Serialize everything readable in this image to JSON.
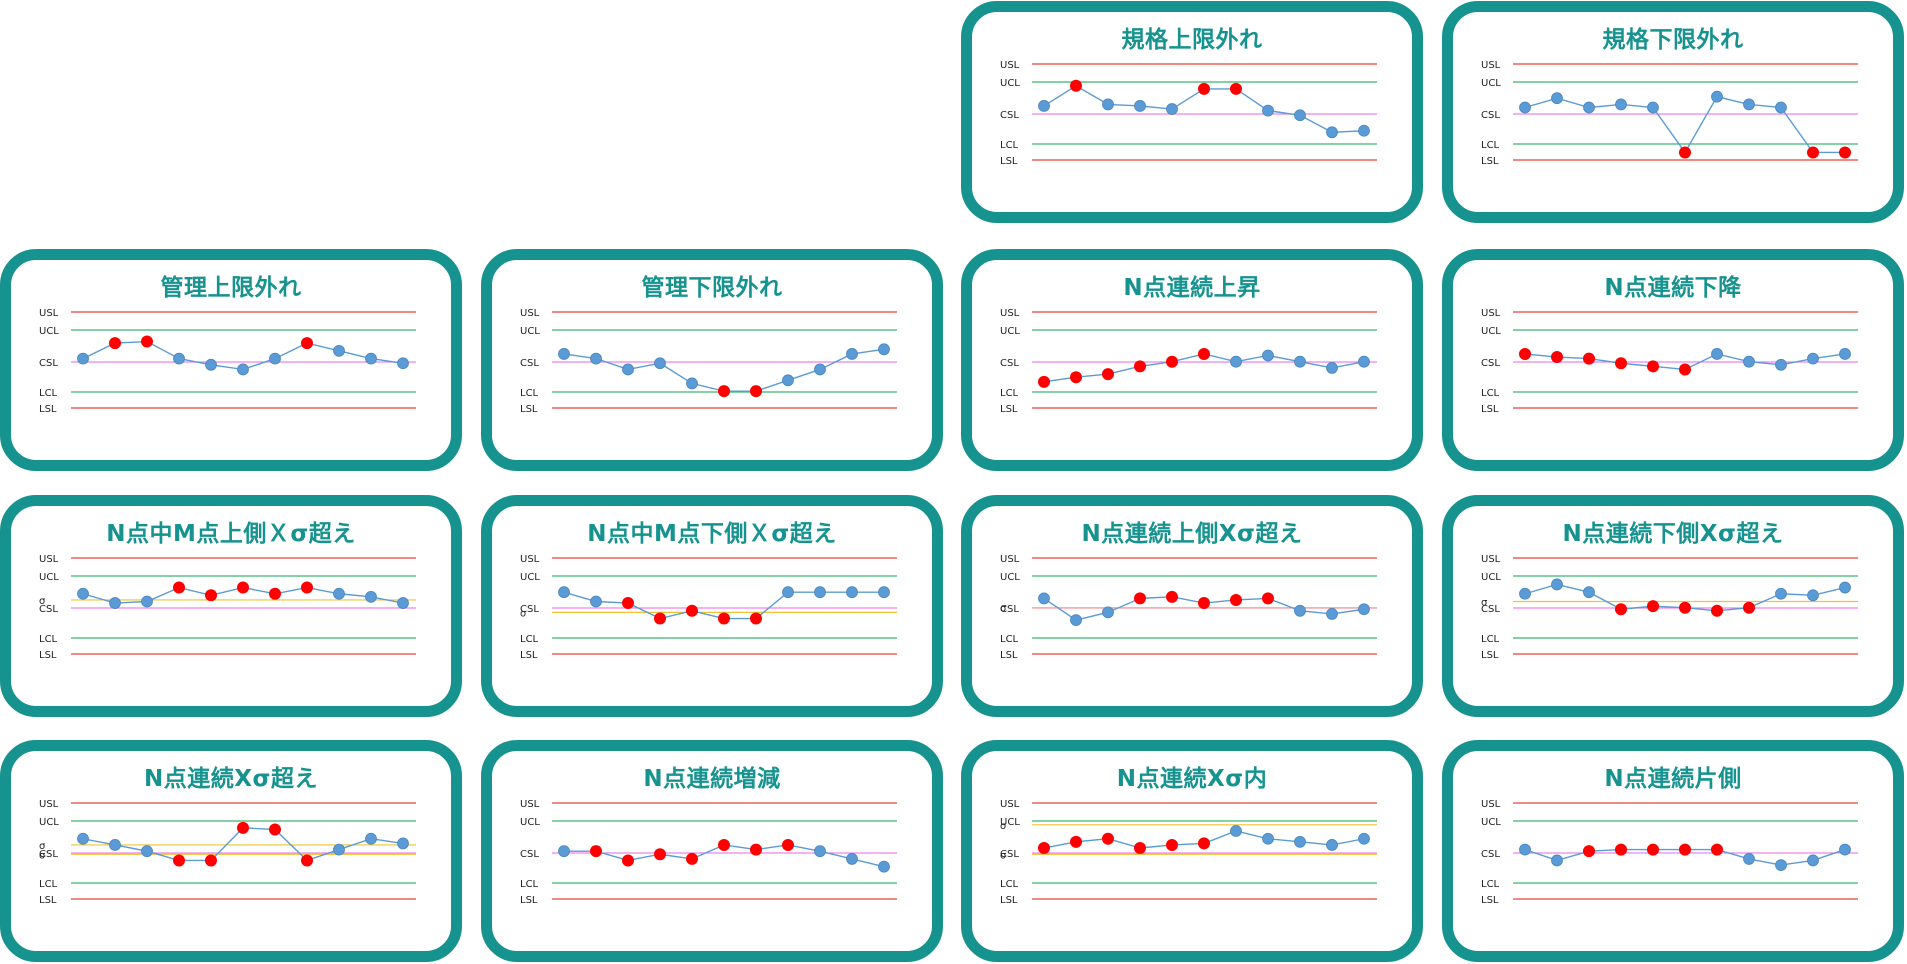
{
  "colors": {
    "accent": "#17938f",
    "usl_lsl": "#e8403a",
    "ucl_lcl": "#3cb371",
    "csl": "#ee82ee",
    "sigma": "#f2c230",
    "line": "#5b9bd5",
    "normal_point": "#5b9bd5",
    "alarm_point": "#ff0000"
  },
  "labels": {
    "USL": "USL",
    "UCL": "UCL",
    "CSL": "CSL",
    "LCL": "LCL",
    "LSL": "LSL",
    "sigma": "σ"
  },
  "cards": [
    {
      "title": "規格上限外れ",
      "chart_data": {
        "type": "line",
        "y": [
          0.45,
          -0.2,
          0.4,
          0.45,
          0.55,
          -0.1,
          -0.1,
          0.6,
          0.75,
          1.3,
          1.25
        ],
        "alarm": [
          1,
          5,
          6
        ],
        "sigma": []
      }
    },
    {
      "title": "規格下限外れ",
      "chart_data": {
        "type": "line",
        "y": [
          0.5,
          0.2,
          0.5,
          0.4,
          0.5,
          1.95,
          0.15,
          0.4,
          0.5,
          1.95,
          1.95
        ],
        "alarm": [
          5,
          9,
          10
        ],
        "sigma": []
      }
    },
    {
      "title": "管理上限外れ",
      "chart_data": {
        "type": "line",
        "y": [
          0.6,
          0.1,
          0.05,
          0.6,
          0.8,
          0.95,
          0.6,
          0.1,
          0.35,
          0.6,
          0.75
        ],
        "alarm": [
          1,
          2,
          7
        ],
        "sigma": []
      }
    },
    {
      "title": "管理下限外れ",
      "chart_data": {
        "type": "line",
        "y": [
          0.45,
          0.6,
          0.95,
          0.75,
          1.4,
          1.65,
          1.65,
          1.3,
          0.95,
          0.45,
          0.3
        ],
        "alarm": [
          5,
          6
        ],
        "sigma": []
      }
    },
    {
      "title": "N点連続上昇",
      "chart_data": {
        "type": "line",
        "y": [
          1.35,
          1.2,
          1.1,
          0.85,
          0.7,
          0.45,
          0.7,
          0.5,
          0.7,
          0.9,
          0.7
        ],
        "alarm": [
          0,
          1,
          2,
          3,
          4,
          5
        ],
        "sigma": []
      }
    },
    {
      "title": "N点連続下降",
      "chart_data": {
        "type": "line",
        "y": [
          0.45,
          0.55,
          0.6,
          0.75,
          0.85,
          0.95,
          0.45,
          0.7,
          0.8,
          0.6,
          0.45
        ],
        "alarm": [
          0,
          1,
          2,
          3,
          4,
          5
        ],
        "sigma": []
      }
    },
    {
      "title": "N点中M点上側Ｘσ超え",
      "chart_data": {
        "type": "line",
        "y": [
          0.25,
          0.55,
          0.5,
          0.05,
          0.3,
          0.05,
          0.25,
          0.05,
          0.25,
          0.35,
          0.55
        ],
        "alarm": [
          3,
          4,
          5,
          6,
          7
        ],
        "sigma": [
          0.45
        ]
      }
    },
    {
      "title": "N点中M点下側Ｘσ超え",
      "chart_data": {
        "type": "line",
        "y": [
          0.2,
          0.5,
          0.55,
          1.05,
          0.8,
          1.05,
          1.05,
          0.2,
          0.2,
          0.2,
          0.2
        ],
        "alarm": [
          2,
          3,
          4,
          5,
          6
        ],
        "sigma": [
          0.85
        ]
      }
    },
    {
      "title": "N点連続上側Xσ超え",
      "chart_data": {
        "type": "line",
        "y": [
          0.4,
          1.1,
          0.85,
          0.4,
          0.35,
          0.55,
          0.45,
          0.4,
          0.8,
          0.9,
          0.75
        ],
        "alarm": [
          3,
          4,
          5,
          6,
          7
        ],
        "sigma": [
          0.7
        ]
      }
    },
    {
      "title": "N点連続下側Xσ超え",
      "chart_data": {
        "type": "line",
        "y": [
          0.25,
          -0.05,
          0.2,
          0.75,
          0.65,
          0.7,
          0.8,
          0.7,
          0.25,
          0.3,
          0.05
        ],
        "alarm": [
          3,
          4,
          5,
          6,
          7
        ],
        "sigma": [
          0.5
        ]
      }
    },
    {
      "title": "N点連続Xσ超え",
      "chart_data": {
        "type": "line",
        "y": [
          0.25,
          0.45,
          0.65,
          0.95,
          0.95,
          -0.1,
          -0.05,
          0.95,
          0.6,
          0.25,
          0.4
        ],
        "alarm": [
          3,
          4,
          5,
          6,
          7
        ],
        "sigma": [
          0.45,
          0.75
        ]
      }
    },
    {
      "title": "N点連続増減",
      "chart_data": {
        "type": "line",
        "y": [
          0.65,
          0.65,
          0.95,
          0.75,
          0.9,
          0.45,
          0.6,
          0.45,
          0.65,
          0.9,
          1.15
        ],
        "alarm": [
          1,
          2,
          3,
          4,
          5,
          6,
          7
        ],
        "sigma": []
      }
    },
    {
      "title": "N点連続Xσ内",
      "chart_data": {
        "type": "line",
        "y": [
          0.55,
          0.35,
          0.25,
          0.55,
          0.45,
          0.4,
          0.0,
          0.25,
          0.35,
          0.45,
          0.25
        ],
        "alarm": [
          0,
          1,
          2,
          3,
          4,
          5
        ],
        "sigma": [
          -0.2,
          0.75
        ]
      }
    },
    {
      "title": "N点連続片側",
      "chart_data": {
        "type": "line",
        "y": [
          0.6,
          0.95,
          0.65,
          0.6,
          0.6,
          0.6,
          0.6,
          0.9,
          1.1,
          0.95,
          0.6
        ],
        "alarm": [
          2,
          3,
          4,
          5,
          6
        ],
        "sigma": []
      }
    }
  ]
}
